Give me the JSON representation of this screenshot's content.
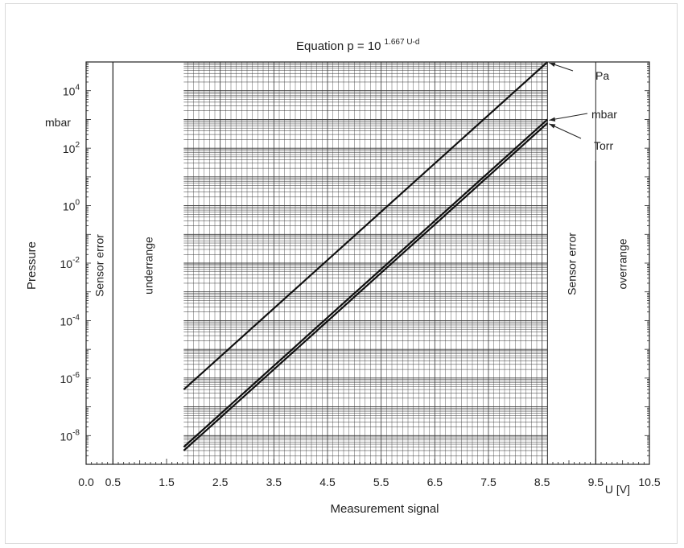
{
  "chart_data": {
    "type": "line",
    "title": "Equation p = 10",
    "title_superscript": "1.667 U-d",
    "xlabel": "Measurement signal",
    "x_unit_label": "U [V]",
    "ylabel": "Pressure",
    "y_unit_label": "mbar",
    "y_scale": "log",
    "xlim": [
      0,
      10.5
    ],
    "ylim": [
      1e-09,
      100000.0
    ],
    "x_ticks": [
      "0.0",
      "0.5",
      "1.5",
      "2.5",
      "3.5",
      "4.5",
      "5.5",
      "6.5",
      "7.5",
      "8.5",
      "9.5",
      "10.5"
    ],
    "y_ticks": [
      {
        "base": "10",
        "exp": "4"
      },
      {
        "base": "10",
        "exp": "2"
      },
      {
        "base": "10",
        "exp": "0"
      },
      {
        "base": "10",
        "exp": "-2"
      },
      {
        "base": "10",
        "exp": "-4"
      },
      {
        "base": "10",
        "exp": "-6"
      },
      {
        "base": "10",
        "exp": "-8"
      }
    ],
    "grid": true,
    "regions": [
      {
        "label": "Sensor error",
        "x_range": [
          0,
          0.5
        ]
      },
      {
        "label": "underrange",
        "x_range": [
          0.5,
          1.82
        ]
      },
      {
        "label": "Sensor error",
        "x_range": [
          8.6,
          9.5
        ]
      },
      {
        "label": "overrange",
        "x_range": [
          9.5,
          10.5
        ]
      }
    ],
    "series": [
      {
        "name": "Pa",
        "x": [
          1.82,
          8.6
        ],
        "y": [
          4e-07,
          100000.0
        ]
      },
      {
        "name": "mbar",
        "x": [
          1.82,
          8.6
        ],
        "y": [
          4e-09,
          1000.0
        ]
      },
      {
        "name": "Torr",
        "x": [
          1.82,
          8.6
        ],
        "y": [
          3e-09,
          750.0
        ]
      }
    ]
  }
}
